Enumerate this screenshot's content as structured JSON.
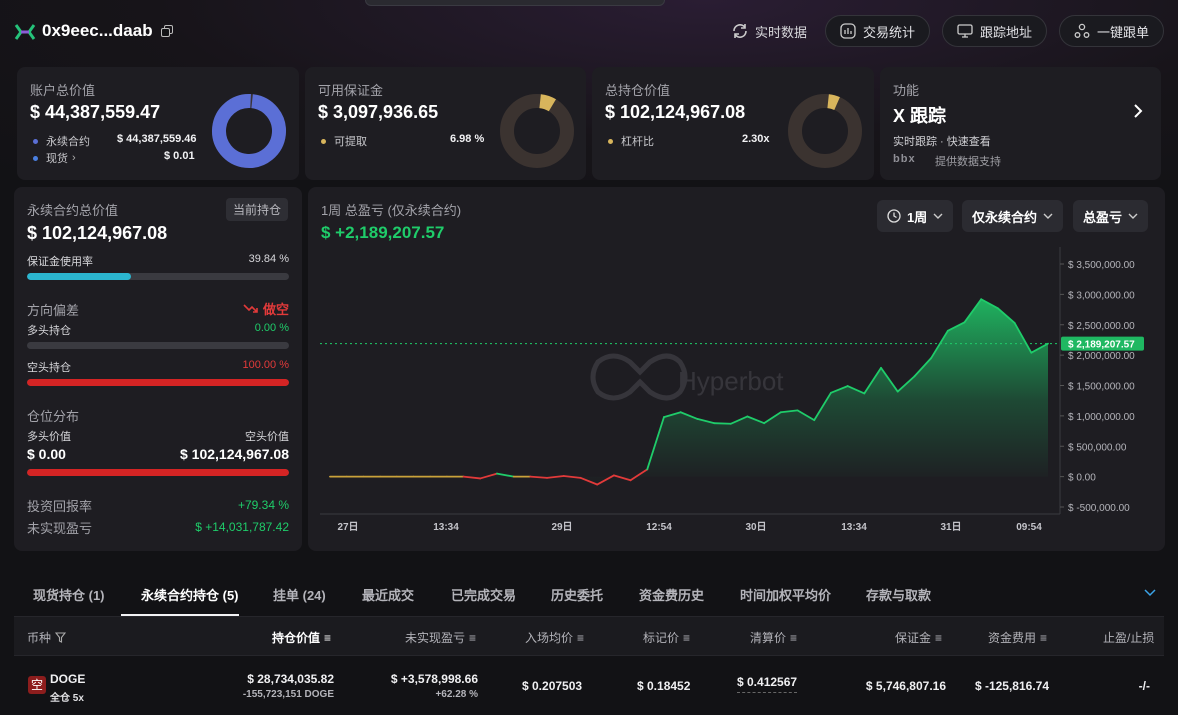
{
  "header": {
    "address": "0x9eec...daab",
    "realtime_label": "实时数据",
    "buttons": [
      "交易统计",
      "跟踪地址",
      "一键跟单"
    ]
  },
  "cards": {
    "account": {
      "title": "账户总价值",
      "value": "$ 44,387,559.47",
      "rows": [
        {
          "label": "永续合约",
          "value": "$ 44,387,559.46",
          "color": "#5b6fd6"
        },
        {
          "label": "现货",
          "value": "$ 0.01",
          "color": "#4a7fe0"
        }
      ],
      "donut_fraction": 1.0,
      "donut_color": "#5b6fd6"
    },
    "margin": {
      "title": "可用保证金",
      "value": "$ 3,097,936.65",
      "row_label": "可提取",
      "row_value": "6.98 %",
      "dot_color": "#d8b55c",
      "donut_fraction": 0.0698,
      "donut_color": "#d8b55c"
    },
    "position": {
      "title": "总持仓价值",
      "value": "$ 102,124,967.08",
      "row_label": "杠杆比",
      "row_value": "2.30x",
      "dot_color": "#d8b55c",
      "donut_fraction": 0.05,
      "donut_color": "#d8b55c"
    },
    "feature": {
      "title": "功能",
      "name": "X 跟踪",
      "desc": "实时跟踪 · 快速查看",
      "provider_logo": "bbx",
      "provider": "提供数据支持"
    }
  },
  "perp": {
    "title": "永续合约总价值",
    "tag": "当前持仓",
    "value": "$ 102,124,967.08",
    "margin_usage_label": "保证金使用率",
    "margin_usage_value": "39.84 %",
    "margin_usage": 0.3984,
    "direction_label": "方向偏差",
    "direction_value": "做空",
    "long_label": "多头持仓",
    "long_value": "0.00 %",
    "long_ratio": 0.0,
    "short_label": "空头持仓",
    "short_value": "100.00 %",
    "short_ratio": 1.0,
    "dist_label": "仓位分布",
    "long_val_label": "多头价值",
    "short_val_label": "空头价值",
    "long_val": "$ 0.00",
    "short_val": "$ 102,124,967.08",
    "roi_label": "投资回报率",
    "roi_value": "+79.34 %",
    "upnl_label": "未实现盈亏",
    "upnl_value": "$ +14,031,787.42"
  },
  "pnl": {
    "title": "1周 总盈亏 (仅永续合约)",
    "value": "$ +2,189,207.57",
    "period": "1周",
    "scope": "仅永续合约",
    "metric": "总盈亏",
    "watermark": "Hyperbot"
  },
  "chart_data": {
    "type": "area",
    "x_ticks": [
      "27日",
      "13:34",
      "29日",
      "12:54",
      "30日",
      "13:34",
      "31日",
      "09:54"
    ],
    "y_ticks": [
      "$ 3,500,000.00",
      "$ 3,000,000.00",
      "$ 2,500,000.00",
      "$ 2,000,000.00",
      "$ 1,500,000.00",
      "$ 1,000,000.00",
      "$ 500,000.00",
      "$ 0.00",
      "$ -500,000.00"
    ],
    "ylim": [
      -500000,
      3500000
    ],
    "current_label": "$ 2,189,207.57",
    "current_value": 2189207.57,
    "values": [
      0,
      0,
      0,
      0,
      0,
      0,
      0,
      0,
      0,
      -30000,
      50000,
      0,
      0,
      -20000,
      10000,
      -20000,
      -130000,
      20000,
      -60000,
      120000,
      980000,
      1060000,
      950000,
      880000,
      870000,
      990000,
      880000,
      1060000,
      1090000,
      930000,
      1380000,
      1490000,
      1370000,
      1790000,
      1400000,
      1650000,
      1950000,
      2400000,
      2540000,
      2920000,
      2770000,
      2530000,
      2040000,
      2189207.57
    ],
    "line_color": "#1fcc6a",
    "negative_color": "#e23a3a"
  },
  "tabs": [
    "现货持仓 (1)",
    "永续合约持仓 (5)",
    "挂单 (24)",
    "最近成交",
    "已完成交易",
    "历史委托",
    "资金费历史",
    "时间加权平均价",
    "存款与取款"
  ],
  "table": {
    "headers": [
      "币种",
      "持仓价值",
      "未实现盈亏",
      "入场均价",
      "标记价",
      "清算价",
      "保证金",
      "资金费用",
      "止盈/止损"
    ],
    "row": {
      "side_badge": "空",
      "coin": "DOGE",
      "mode": "全仓 5x",
      "value": "$ 28,734,035.82",
      "size": "-155,723,151 DOGE",
      "upnl": "$ +3,578,998.66",
      "upnl_pct": "+62.28 %",
      "entry": "$ 0.207503",
      "mark": "$ 0.18452",
      "liq": "$ 0.412567",
      "margin": "$ 5,746,807.16",
      "funding": "$ -125,816.74",
      "tpsl": "-/-"
    }
  }
}
